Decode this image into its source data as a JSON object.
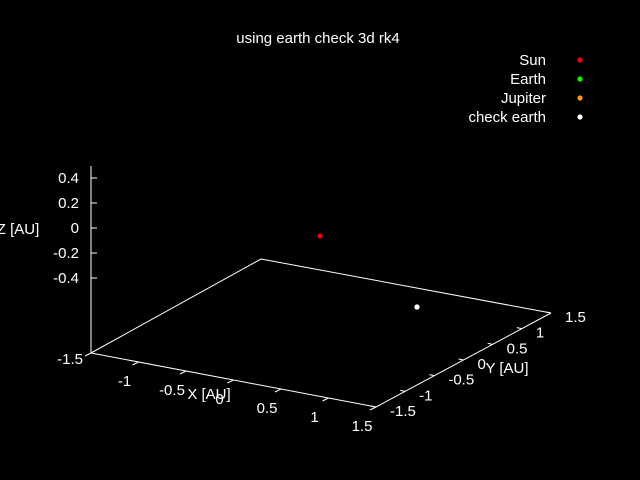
{
  "chart_data": {
    "type": "scatter",
    "title": "using earth check 3d rk4",
    "xlabel": "X [AU]",
    "ylabel": "Y [AU]",
    "zlabel": "Z [AU]",
    "xlim": [
      -1.5,
      1.5
    ],
    "ylim": [
      -1.5,
      1.5
    ],
    "zlim": [
      -0.5,
      0.5
    ],
    "x_ticks": [
      "-1.5",
      "-1",
      "-0.5",
      "0",
      "0.5",
      "1",
      "1.5"
    ],
    "y_ticks": [
      "-1.5",
      "-1",
      "-0.5",
      "0",
      "0.5",
      "1",
      "1.5"
    ],
    "z_ticks": [
      "0.4",
      "0.2",
      "0",
      "-0.2",
      "-0.4"
    ],
    "grid": false,
    "legend_position": "top-right",
    "series": [
      {
        "name": "Sun",
        "color": "#ff0000",
        "points": [
          {
            "x": 0,
            "y": 0,
            "z": 0
          }
        ]
      },
      {
        "name": "Earth",
        "color": "#00ff00",
        "points": [
          {
            "x": 1.0,
            "y": 0.0,
            "z": 0
          }
        ]
      },
      {
        "name": "Jupiter",
        "color": "#ff9900",
        "points": []
      },
      {
        "name": "check earth",
        "color": "#ffffff",
        "points": [
          {
            "x": 1.0,
            "y": 0.0,
            "z": 0
          }
        ]
      }
    ]
  }
}
